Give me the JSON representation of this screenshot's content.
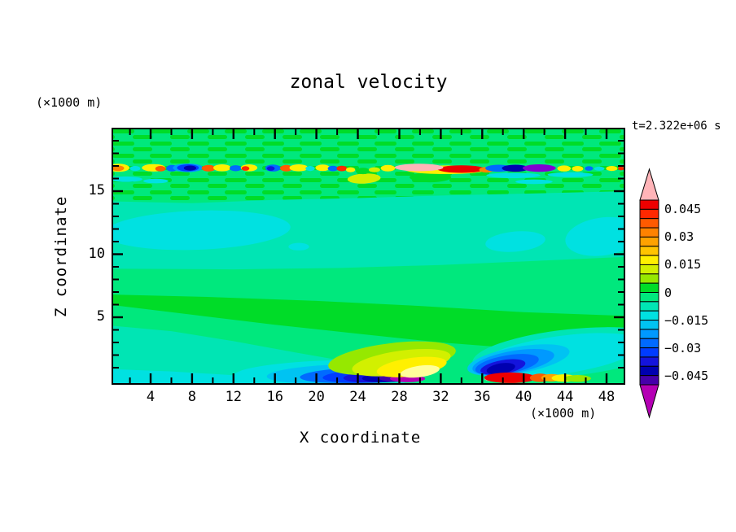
{
  "figure": {
    "title": "zonal velocity",
    "time_label": "t=2.322e+06 s",
    "background_color": "#ffffff"
  },
  "axes": {
    "x": {
      "label": "X coordinate",
      "unit": "(×1000 m)",
      "major_ticks": [
        4,
        8,
        12,
        16,
        20,
        24,
        28,
        32,
        36,
        40,
        44,
        48
      ],
      "minor_ticks": [
        2,
        6,
        10,
        14,
        18,
        22,
        26,
        30,
        34,
        38,
        42,
        46
      ],
      "range": [
        0.25,
        49.8
      ]
    },
    "z": {
      "label": "Z coordinate",
      "unit": "(×1000 m)",
      "major_ticks": [
        5,
        10,
        15
      ],
      "minor_ticks": [
        1,
        2,
        3,
        4,
        6,
        7,
        8,
        9,
        11,
        12,
        13,
        14,
        16,
        17,
        18,
        19
      ],
      "range": [
        -0.35,
        20.0
      ]
    }
  },
  "colorbar": {
    "labels": [
      "0.045",
      "0.03",
      "0.015",
      "0",
      "−0.015",
      "−0.03",
      "−0.045"
    ],
    "label_values": [
      0.045,
      0.03,
      0.015,
      0,
      -0.015,
      -0.03,
      -0.045
    ],
    "levels": {
      "min": -0.05,
      "max": 0.05,
      "interval": 0.005
    },
    "colors_top_to_bottom": [
      "#ee0000",
      "#ff2800",
      "#ff5a00",
      "#ff8200",
      "#ffa200",
      "#ffc400",
      "#fff000",
      "#d2f000",
      "#96e800",
      "#00dc28",
      "#00e87d",
      "#00e5b4",
      "#00e1e1",
      "#00c3f2",
      "#0099ff",
      "#006aff",
      "#003cff",
      "#1414dc",
      "#0000b0",
      "#4600aa"
    ],
    "over_color": "#ffb4b8",
    "under_color": "#b400b4"
  },
  "chart_data": {
    "type": "heatmap",
    "subtype": "filled-contour-section",
    "title": "zonal velocity",
    "xlabel": "X coordinate (×1000 m)",
    "ylabel": "Z coordinate (×1000 m)",
    "xlim": [
      0.25,
      49.8
    ],
    "ylim": [
      -0.35,
      20.0
    ],
    "time_annotation": "t=2.322e+06 s",
    "contour_levels": {
      "min": -0.05,
      "max": 0.05,
      "interval": 0.005
    },
    "labeled_levels": [
      0.045,
      0.03,
      0.015,
      0,
      -0.015,
      -0.03,
      -0.045
    ],
    "background_value_band": "0 to -0.005 (spring green) over most of domain",
    "palette": {
      "c1": "#ee0000",
      "c2": "#ff2800",
      "c3": "#ff5a00",
      "c4": "#ff8200",
      "c5": "#ffa200",
      "c6": "#ffc400",
      "c7": "#fff000",
      "c8": "#d2f000",
      "c9": "#96e800",
      "c10": "#00dc28",
      "c11": "#00e87d",
      "c12": "#00e5b4",
      "c13": "#00e1e1",
      "c14": "#00c3f2",
      "c15": "#0099ff",
      "c16": "#006aff",
      "c17": "#003cff",
      "c18": "#1414dc",
      "c19": "#0000b0",
      "c20": "#4600aa",
      "pink": "#ffb4b8",
      "magenta": "#b400b4",
      "violet": "#8200d2",
      "pale": "#ffff9b"
    },
    "features": [
      {
        "s": "mottle",
        "z0": 20.1,
        "z1": 14.2
      },
      {
        "s": "p",
        "c": "c12",
        "pts": [
          [
            0,
            14.2
          ],
          [
            8,
            14.05
          ],
          [
            16,
            14.3
          ],
          [
            24,
            14.45
          ],
          [
            32,
            14.65
          ],
          [
            40,
            14.8
          ],
          [
            50,
            15.0
          ],
          [
            50,
            9.8
          ],
          [
            42,
            9.5
          ],
          [
            32,
            9.15
          ],
          [
            22,
            8.9
          ],
          [
            12,
            8.8
          ],
          [
            0,
            8.85
          ]
        ]
      },
      {
        "s": "e",
        "c": "c13",
        "x": 8.5,
        "z": 11.9,
        "rx": 9.0,
        "rz": 1.55,
        "r": -2
      },
      {
        "s": "e",
        "c": "c13",
        "x": 47.6,
        "z": 11.4,
        "rx": 3.6,
        "rz": 1.5,
        "r": -8
      },
      {
        "s": "e",
        "c": "c13",
        "x": 39.2,
        "z": 11.0,
        "rx": 2.9,
        "rz": 0.8,
        "r": -5
      },
      {
        "s": "e",
        "c": "c13",
        "x": 18.3,
        "z": 10.6,
        "rx": 1.0,
        "rz": 0.3,
        "r": 0
      },
      {
        "s": "p",
        "c": "c10",
        "pts": [
          [
            0,
            6.8
          ],
          [
            10,
            6.6
          ],
          [
            20,
            6.3
          ],
          [
            30,
            5.9
          ],
          [
            40,
            5.4
          ],
          [
            50,
            5.1
          ],
          [
            50,
            2.2
          ],
          [
            40,
            2.5
          ],
          [
            32,
            3.0
          ],
          [
            24,
            3.7
          ],
          [
            16,
            4.4
          ],
          [
            8,
            5.2
          ],
          [
            0,
            6.0
          ]
        ]
      },
      {
        "s": "p",
        "c": "c12",
        "pts": [
          [
            0,
            4.35
          ],
          [
            6,
            3.9
          ],
          [
            12,
            3.1
          ],
          [
            18,
            2.2
          ],
          [
            24,
            1.35
          ],
          [
            28.5,
            0.7
          ],
          [
            28.5,
            -0.4
          ],
          [
            0,
            -0.4
          ]
        ]
      },
      {
        "s": "p",
        "c": "c13",
        "pts": [
          [
            0,
            0.9
          ],
          [
            6,
            0.7
          ],
          [
            12,
            0.4
          ],
          [
            16.5,
            0.1
          ],
          [
            16.5,
            -0.4
          ],
          [
            0,
            -0.4
          ]
        ]
      },
      {
        "s": "e",
        "c": "c12",
        "x": 44.5,
        "z": 2.2,
        "rx": 9.5,
        "rz": 1.85,
        "r": -6
      },
      {
        "s": "e",
        "c": "c13",
        "x": 43.5,
        "z": 2.0,
        "rx": 8.0,
        "rz": 1.5,
        "r": -8
      },
      {
        "s": "e",
        "c": "c14",
        "x": 39.5,
        "z": 1.6,
        "rx": 5.0,
        "rz": 1.05,
        "r": -10
      },
      {
        "s": "e",
        "c": "c15",
        "x": 39.0,
        "z": 1.45,
        "rx": 4.0,
        "rz": 0.88,
        "r": -10
      },
      {
        "s": "e",
        "c": "c16",
        "x": 38.4,
        "z": 1.25,
        "rx": 3.1,
        "rz": 0.72,
        "r": -10
      },
      {
        "s": "e",
        "c": "c18",
        "x": 38.0,
        "z": 1.05,
        "rx": 2.2,
        "rz": 0.55,
        "r": -10
      },
      {
        "s": "e",
        "c": "c19",
        "x": 37.8,
        "z": 0.92,
        "rx": 1.4,
        "rz": 0.42,
        "r": -10
      },
      {
        "s": "e",
        "c": "c13",
        "x": 20.5,
        "z": 0.6,
        "rx": 8.5,
        "rz": 0.95,
        "r": -2
      },
      {
        "s": "e",
        "c": "c14",
        "x": 22.0,
        "z": 0.5,
        "rx": 6.8,
        "rz": 0.75,
        "r": -2
      },
      {
        "s": "e",
        "c": "c16",
        "x": 23.8,
        "z": 0.4,
        "rx": 5.4,
        "rz": 0.6,
        "r": -2
      },
      {
        "s": "e",
        "c": "c17",
        "x": 25.0,
        "z": 0.33,
        "rx": 4.4,
        "rz": 0.52,
        "r": -2
      },
      {
        "s": "e",
        "c": "c18",
        "x": 26.0,
        "z": 0.27,
        "rx": 3.4,
        "rz": 0.45,
        "r": -2
      },
      {
        "s": "e",
        "c": "c19",
        "x": 26.9,
        "z": 0.22,
        "rx": 2.5,
        "rz": 0.36,
        "r": -2
      },
      {
        "s": "e",
        "c": "c20",
        "x": 27.7,
        "z": 0.18,
        "rx": 1.7,
        "rz": 0.3,
        "r": 0
      },
      {
        "s": "e",
        "c": "magenta",
        "x": 28.8,
        "z": 0.13,
        "rx": 1.7,
        "rz": 0.28,
        "r": 0
      },
      {
        "s": "e",
        "c": "c9",
        "x": 27.3,
        "z": 1.75,
        "rx": 6.2,
        "rz": 1.2,
        "r": -7
      },
      {
        "s": "e",
        "c": "c8",
        "x": 28.2,
        "z": 1.4,
        "rx": 4.8,
        "rz": 0.95,
        "r": -8
      },
      {
        "s": "e",
        "c": "c7",
        "x": 29.2,
        "z": 1.05,
        "rx": 3.4,
        "rz": 0.72,
        "r": -8
      },
      {
        "s": "e",
        "c": "pale",
        "x": 30.0,
        "z": 0.7,
        "rx": 1.9,
        "rz": 0.45,
        "r": -8
      },
      {
        "s": "e",
        "c": "pink",
        "x": 37.0,
        "z": 0.15,
        "rx": 0.8,
        "rz": 0.22,
        "r": 0
      },
      {
        "s": "e",
        "c": "c1",
        "x": 38.7,
        "z": 0.2,
        "rx": 2.5,
        "rz": 0.42,
        "r": 0
      },
      {
        "s": "e",
        "c": "c3",
        "x": 41.6,
        "z": 0.2,
        "rx": 1.0,
        "rz": 0.33,
        "r": 0
      },
      {
        "s": "e",
        "c": "c5",
        "x": 42.7,
        "z": 0.2,
        "rx": 1.0,
        "rz": 0.3,
        "r": 0
      },
      {
        "s": "e",
        "c": "c7",
        "x": 43.9,
        "z": 0.18,
        "rx": 1.2,
        "rz": 0.3,
        "r": 0
      },
      {
        "s": "e",
        "c": "c9",
        "x": 45.2,
        "z": 0.15,
        "rx": 1.3,
        "rz": 0.27,
        "r": 0
      },
      {
        "s": "e",
        "c": "c13",
        "x": 1.6,
        "z": 15.95,
        "rx": 1.6,
        "rz": 0.22,
        "r": 0
      },
      {
        "s": "e",
        "c": "c13",
        "x": 4.5,
        "z": 15.8,
        "rx": 1.2,
        "rz": 0.18,
        "r": 0
      },
      {
        "s": "e",
        "c": "c8",
        "x": 24.6,
        "z": 16.0,
        "rx": 1.6,
        "rz": 0.4,
        "r": -3
      },
      {
        "s": "e",
        "c": "c10",
        "x": 31.0,
        "z": 16.1,
        "rx": 2.0,
        "rz": 0.4,
        "r": 0
      },
      {
        "s": "e",
        "c": "c13",
        "x": 39.0,
        "z": 16.25,
        "rx": 2.6,
        "rz": 0.22,
        "r": 0
      },
      {
        "s": "e",
        "c": "c13",
        "x": 44.5,
        "z": 16.3,
        "rx": 2.2,
        "rz": 0.2,
        "r": 0
      },
      {
        "s": "e",
        "c": "c13",
        "x": 41.0,
        "z": 15.75,
        "rx": 1.8,
        "rz": 0.18,
        "r": 0
      },
      {
        "s": "e",
        "c": "c7",
        "x": 0.9,
        "z": 16.85,
        "rx": 1.05,
        "rz": 0.32,
        "r": 0
      },
      {
        "s": "e",
        "c": "c4",
        "x": 0.85,
        "z": 16.82,
        "rx": 0.6,
        "rz": 0.22,
        "r": 0
      },
      {
        "s": "e",
        "c": "c13",
        "x": 2.5,
        "z": 16.8,
        "rx": 0.5,
        "rz": 0.2,
        "r": 0
      },
      {
        "s": "e",
        "c": "c7",
        "x": 4.3,
        "z": 16.85,
        "rx": 1.15,
        "rz": 0.3,
        "r": 0
      },
      {
        "s": "e",
        "c": "c3",
        "x": 4.95,
        "z": 16.78,
        "rx": 0.5,
        "rz": 0.22,
        "r": 0
      },
      {
        "s": "e",
        "c": "c16",
        "x": 6.05,
        "z": 16.82,
        "rx": 0.55,
        "rz": 0.26,
        "r": 0
      },
      {
        "s": "e",
        "c": "c15",
        "x": 7.6,
        "z": 16.85,
        "rx": 1.45,
        "rz": 0.34,
        "r": 0
      },
      {
        "s": "e",
        "c": "c17",
        "x": 7.6,
        "z": 16.85,
        "rx": 1.05,
        "rz": 0.28,
        "r": 0
      },
      {
        "s": "e",
        "c": "c19",
        "x": 7.8,
        "z": 16.83,
        "rx": 0.6,
        "rz": 0.2,
        "r": 0
      },
      {
        "s": "e",
        "c": "c3",
        "x": 9.6,
        "z": 16.82,
        "rx": 0.68,
        "rz": 0.26,
        "r": 0
      },
      {
        "s": "e",
        "c": "c7",
        "x": 10.9,
        "z": 16.85,
        "rx": 0.85,
        "rz": 0.28,
        "r": 0
      },
      {
        "s": "e",
        "c": "c16",
        "x": 12.2,
        "z": 16.82,
        "rx": 0.58,
        "rz": 0.24,
        "r": 0
      },
      {
        "s": "e",
        "c": "c7",
        "x": 13.5,
        "z": 16.85,
        "rx": 0.8,
        "rz": 0.28,
        "r": 0
      },
      {
        "s": "e",
        "c": "c2",
        "x": 13.15,
        "z": 16.8,
        "rx": 0.38,
        "rz": 0.18,
        "r": 0
      },
      {
        "s": "e",
        "c": "c16",
        "x": 15.8,
        "z": 16.83,
        "rx": 0.75,
        "rz": 0.28,
        "r": 0
      },
      {
        "s": "e",
        "c": "c18",
        "x": 15.6,
        "z": 16.8,
        "rx": 0.38,
        "rz": 0.18,
        "r": 0
      },
      {
        "s": "e",
        "c": "c3",
        "x": 17.1,
        "z": 16.82,
        "rx": 0.6,
        "rz": 0.26,
        "r": 0
      },
      {
        "s": "e",
        "c": "c7",
        "x": 18.3,
        "z": 16.85,
        "rx": 0.9,
        "rz": 0.28,
        "r": 0
      },
      {
        "s": "e",
        "c": "c13",
        "x": 19.4,
        "z": 16.8,
        "rx": 0.45,
        "rz": 0.2,
        "r": 0
      },
      {
        "s": "e",
        "c": "c7",
        "x": 20.6,
        "z": 16.85,
        "rx": 0.7,
        "rz": 0.26,
        "r": 0
      },
      {
        "s": "e",
        "c": "c16",
        "x": 21.6,
        "z": 16.8,
        "rx": 0.5,
        "rz": 0.22,
        "r": 0
      },
      {
        "s": "e",
        "c": "c2",
        "x": 22.45,
        "z": 16.8,
        "rx": 0.5,
        "rz": 0.22,
        "r": 0
      },
      {
        "s": "e",
        "c": "c7",
        "x": 23.3,
        "z": 16.7,
        "rx": 0.45,
        "rz": 0.2,
        "r": 0
      },
      {
        "s": "e",
        "c": "c10",
        "x": 24.5,
        "z": 16.6,
        "rx": 0.7,
        "rz": 0.25,
        "r": 0
      },
      {
        "s": "e",
        "c": "c8",
        "x": 25.6,
        "z": 16.7,
        "rx": 0.55,
        "rz": 0.2,
        "r": 0
      },
      {
        "s": "e",
        "c": "c7",
        "x": 26.9,
        "z": 16.82,
        "rx": 0.7,
        "rz": 0.26,
        "r": 0
      },
      {
        "s": "e",
        "c": "c7",
        "x": 32.5,
        "z": 16.7,
        "rx": 3.9,
        "rz": 0.34,
        "r": 0
      },
      {
        "s": "e",
        "c": "c1",
        "x": 34.0,
        "z": 16.75,
        "rx": 2.3,
        "rz": 0.3,
        "r": 0
      },
      {
        "s": "e",
        "c": "c4",
        "x": 36.4,
        "z": 16.7,
        "rx": 0.7,
        "rz": 0.22,
        "r": 0
      },
      {
        "s": "e",
        "c": "pink",
        "x": 29.9,
        "z": 16.88,
        "rx": 2.35,
        "rz": 0.3,
        "r": 0
      },
      {
        "s": "e",
        "c": "c16",
        "x": 37.6,
        "z": 16.82,
        "rx": 1.3,
        "rz": 0.28,
        "r": 0
      },
      {
        "s": "e",
        "c": "c19",
        "x": 39.2,
        "z": 16.82,
        "rx": 1.3,
        "rz": 0.28,
        "r": 0
      },
      {
        "s": "e",
        "c": "violet",
        "x": 41.5,
        "z": 16.83,
        "rx": 1.6,
        "rz": 0.3,
        "r": 0
      },
      {
        "s": "e",
        "c": "c7",
        "x": 43.9,
        "z": 16.8,
        "rx": 0.65,
        "rz": 0.24,
        "r": 0
      },
      {
        "s": "e",
        "c": "c7",
        "x": 45.2,
        "z": 16.78,
        "rx": 0.55,
        "rz": 0.22,
        "r": 0
      },
      {
        "s": "e",
        "c": "c16",
        "x": 46.3,
        "z": 16.8,
        "rx": 0.4,
        "rz": 0.18,
        "r": 0
      },
      {
        "s": "e",
        "c": "c13",
        "x": 47.3,
        "z": 16.78,
        "rx": 0.5,
        "rz": 0.16,
        "r": 0
      },
      {
        "s": "e",
        "c": "c7",
        "x": 48.5,
        "z": 16.8,
        "rx": 0.55,
        "rz": 0.2,
        "r": 0
      },
      {
        "s": "e",
        "c": "c2",
        "x": 49.4,
        "z": 16.8,
        "rx": 0.3,
        "rz": 0.15,
        "r": 0
      }
    ]
  }
}
